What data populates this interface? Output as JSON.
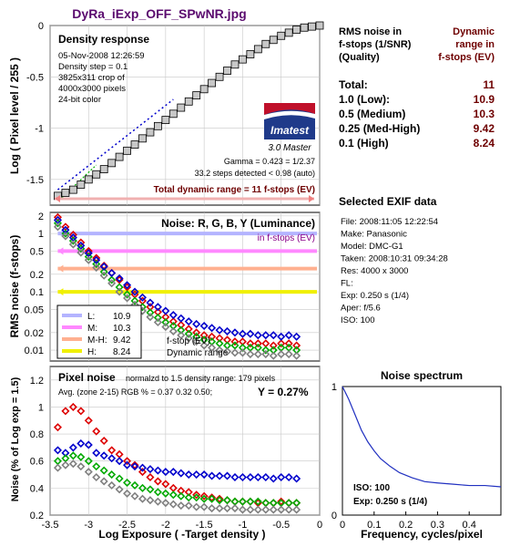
{
  "title": "DyRa_iExp_OFF_SPwNR.jpg",
  "colors": {
    "title": "#5a0a6e",
    "darkred": "#6e0000",
    "red": "#dd0000",
    "green": "#00aa00",
    "blue": "#0000cc",
    "gray": "#808080",
    "purple": "#880088"
  },
  "panel1": {
    "heading": "Density response",
    "info": [
      "05-Nov-2008 12:26:59",
      "Density step = 0.1",
      "3825x311 crop of",
      "4000x3000 pixels",
      "24-bit color"
    ],
    "logo": "Imatest",
    "logo_sub": "3.0  Master",
    "gamma": "Gamma = 0.423 = 1/2.37",
    "steps": "33.2 steps detected < 0.98 (auto)",
    "total_dr": "Total dynamic range = 11 f-stops (EV)",
    "ylabel": "Log ( Pixel level / 255 )",
    "yticks": [
      "0",
      "-0.5",
      "-1",
      "-1.5"
    ]
  },
  "panel2": {
    "heading": "Noise: R, G, B, Y (Luminance)",
    "sub": "in f-stops (EV)",
    "ylabel": "RMS noise (f-stops)",
    "yticks": [
      "2",
      "1",
      "0.5",
      "0.2",
      "0.1",
      "0.05",
      "0.02",
      "0.01"
    ],
    "legend": [
      {
        "key": "L:",
        "val": "10.9",
        "color": "#b4b4ff"
      },
      {
        "key": "M:",
        "val": "10.3",
        "color": "#ff88ff"
      },
      {
        "key": "M-H:",
        "val": "9.42",
        "color": "#ffb090"
      },
      {
        "key": "H:",
        "val": "8.24",
        "color": "#f0f000"
      }
    ],
    "note1": "f-stop (EV)",
    "note2": "Dynamic range"
  },
  "panel3": {
    "heading": "Pixel noise",
    "norm": "normalzd to 1.5 density range: 179 pixels",
    "avg": "Avg. (zone 2-15) RGB % = 0.37  0.32  0.50;",
    "y": "Y = 0.27%",
    "ylabel": "Noise (% of Log exp = 1.5)",
    "xlabel": "Log Exposure ( -Target density )",
    "yticks": [
      "1.2",
      "1",
      "0.8",
      "0.6",
      "0.4",
      "0.2"
    ],
    "xticks": [
      "-3.5",
      "-3",
      "-2.5",
      "-2",
      "-1.5",
      "-1",
      "-0.5",
      "0"
    ]
  },
  "dr_table": {
    "head_left": [
      "RMS noise in",
      "f-stops (1/SNR)",
      "(Quality)"
    ],
    "head_right": [
      "Dynamic",
      "range in",
      "f-stops (EV)"
    ],
    "rows": [
      {
        "label": "Total:",
        "value": "11"
      },
      {
        "label": "1.0   (Low):",
        "value": "10.9"
      },
      {
        "label": "0.5   (Medium)",
        "value": "10.3"
      },
      {
        "label": "0.25 (Med-High)",
        "value": "9.42"
      },
      {
        "label": "0.1   (High)",
        "value": "8.24"
      }
    ]
  },
  "exif": {
    "heading": "Selected EXIF data",
    "lines": [
      "File:  2008:11:05 12:22:54",
      "Make:  Panasonic",
      "Model: DMC-G1",
      "Taken: 2008:10:31 09:34:28",
      "Res:    4000 x 3000",
      "FL:",
      "Exp:   0.250 s  (1/4)",
      "Aper:  f/5.6",
      "ISO:   100"
    ]
  },
  "spectrum": {
    "heading": "Noise spectrum",
    "iso": "ISO:  100",
    "exp": "Exp:  0.250 s  (1/4)",
    "xlabel": "Frequency, cycles/pixel",
    "xticks": [
      "0",
      "0.1",
      "0.2",
      "0.3",
      "0.4"
    ],
    "yticks": [
      "1",
      "0"
    ]
  },
  "chart_data": [
    {
      "type": "line",
      "title": "Density response",
      "xlabel": "Log Exposure ( -Target density )",
      "ylabel": "Log ( Pixel level / 255 )",
      "xlim": [
        -3.5,
        0
      ],
      "ylim": [
        -1.75,
        0
      ],
      "x": [
        -3.4,
        -3.3,
        -3.2,
        -3.1,
        -3.0,
        -2.9,
        -2.8,
        -2.7,
        -2.6,
        -2.5,
        -2.4,
        -2.3,
        -2.2,
        -2.1,
        -2.0,
        -1.9,
        -1.8,
        -1.7,
        -1.6,
        -1.5,
        -1.4,
        -1.3,
        -1.2,
        -1.1,
        -1.0,
        -0.9,
        -0.8,
        -0.7,
        -0.6,
        -0.5,
        -0.4,
        -0.3,
        -0.2,
        -0.1,
        0.0
      ],
      "y": [
        -1.66,
        -1.63,
        -1.6,
        -1.55,
        -1.5,
        -1.45,
        -1.4,
        -1.34,
        -1.28,
        -1.22,
        -1.16,
        -1.1,
        -1.04,
        -0.98,
        -0.92,
        -0.86,
        -0.8,
        -0.74,
        -0.68,
        -0.62,
        -0.56,
        -0.5,
        -0.44,
        -0.38,
        -0.33,
        -0.28,
        -0.23,
        -0.18,
        -0.14,
        -0.1,
        -0.07,
        -0.04,
        -0.02,
        -0.01,
        0.0
      ]
    },
    {
      "type": "scatter",
      "title": "Noise: R, G, B, Y (Luminance)",
      "ylabel": "RMS noise (f-stops)",
      "yscale": "log",
      "ylim": [
        0.006,
        2.5
      ],
      "x": [
        -3.4,
        -3.3,
        -3.2,
        -3.1,
        -3.0,
        -2.9,
        -2.8,
        -2.7,
        -2.6,
        -2.5,
        -2.4,
        -2.3,
        -2.2,
        -2.1,
        -2.0,
        -1.9,
        -1.8,
        -1.7,
        -1.6,
        -1.5,
        -1.4,
        -1.3,
        -1.2,
        -1.1,
        -1.0,
        -0.9,
        -0.8,
        -0.7,
        -0.6,
        -0.5,
        -0.4,
        -0.3
      ],
      "series": [
        {
          "color": "#dd0000",
          "values": [
            1.9,
            1.3,
            0.95,
            0.7,
            0.5,
            0.38,
            0.28,
            0.21,
            0.16,
            0.12,
            0.09,
            0.07,
            0.055,
            0.045,
            0.037,
            0.031,
            0.027,
            0.023,
            0.02,
            0.018,
            0.017,
            0.016,
            0.015,
            0.014,
            0.014,
            0.013,
            0.013,
            0.013,
            0.012,
            0.013,
            0.013,
            0.012
          ]
        },
        {
          "color": "#00aa00",
          "values": [
            1.5,
            1.0,
            0.75,
            0.55,
            0.4,
            0.3,
            0.22,
            0.16,
            0.12,
            0.09,
            0.07,
            0.055,
            0.044,
            0.036,
            0.03,
            0.026,
            0.022,
            0.019,
            0.017,
            0.015,
            0.014,
            0.013,
            0.012,
            0.012,
            0.011,
            0.011,
            0.011,
            0.01,
            0.01,
            0.011,
            0.011,
            0.01
          ]
        },
        {
          "color": "#0000cc",
          "values": [
            1.7,
            1.15,
            0.85,
            0.62,
            0.46,
            0.35,
            0.27,
            0.21,
            0.17,
            0.13,
            0.1,
            0.08,
            0.065,
            0.055,
            0.047,
            0.04,
            0.035,
            0.031,
            0.028,
            0.026,
            0.024,
            0.022,
            0.021,
            0.02,
            0.019,
            0.019,
            0.018,
            0.018,
            0.018,
            0.017,
            0.018,
            0.017
          ]
        },
        {
          "color": "#808080",
          "values": [
            1.3,
            0.9,
            0.65,
            0.47,
            0.35,
            0.26,
            0.19,
            0.14,
            0.1,
            0.078,
            0.06,
            0.047,
            0.037,
            0.03,
            0.025,
            0.021,
            0.018,
            0.016,
            0.014,
            0.012,
            0.011,
            0.01,
            0.0095,
            0.009,
            0.009,
            0.0085,
            0.0085,
            0.0085,
            0.008,
            0.0085,
            0.0085,
            0.008
          ]
        }
      ]
    },
    {
      "type": "scatter",
      "title": "Pixel noise",
      "xlabel": "Log Exposure ( -Target density )",
      "ylabel": "Noise (% of Log exp = 1.5)",
      "xlim": [
        -3.5,
        0
      ],
      "ylim": [
        0.2,
        1.3
      ],
      "x": [
        -3.4,
        -3.3,
        -3.2,
        -3.1,
        -3.0,
        -2.9,
        -2.8,
        -2.7,
        -2.6,
        -2.5,
        -2.4,
        -2.3,
        -2.2,
        -2.1,
        -2.0,
        -1.9,
        -1.8,
        -1.7,
        -1.6,
        -1.5,
        -1.4,
        -1.3,
        -1.2,
        -1.1,
        -1.0,
        -0.9,
        -0.8,
        -0.7,
        -0.6,
        -0.5,
        -0.4,
        -0.3
      ],
      "series": [
        {
          "color": "#dd0000",
          "values": [
            0.85,
            0.97,
            1.0,
            0.97,
            0.9,
            0.82,
            0.75,
            0.68,
            0.65,
            0.6,
            0.57,
            0.52,
            0.48,
            0.45,
            0.43,
            0.4,
            0.38,
            0.37,
            0.35,
            0.34,
            0.33,
            0.32,
            0.31,
            0.3,
            0.3,
            0.3,
            0.29,
            0.29,
            0.29,
            0.3,
            0.29,
            0.29
          ]
        },
        {
          "color": "#0000cc",
          "values": [
            0.68,
            0.66,
            0.7,
            0.73,
            0.72,
            0.66,
            0.64,
            0.62,
            0.6,
            0.57,
            0.56,
            0.55,
            0.54,
            0.53,
            0.52,
            0.52,
            0.51,
            0.5,
            0.5,
            0.5,
            0.49,
            0.49,
            0.49,
            0.48,
            0.48,
            0.48,
            0.48,
            0.48,
            0.47,
            0.48,
            0.48,
            0.47
          ]
        },
        {
          "color": "#00aa00",
          "values": [
            0.6,
            0.62,
            0.64,
            0.63,
            0.6,
            0.56,
            0.53,
            0.5,
            0.47,
            0.44,
            0.42,
            0.4,
            0.39,
            0.37,
            0.36,
            0.35,
            0.34,
            0.33,
            0.33,
            0.32,
            0.32,
            0.31,
            0.31,
            0.3,
            0.3,
            0.3,
            0.3,
            0.29,
            0.29,
            0.29,
            0.29,
            0.29
          ]
        },
        {
          "color": "#808080",
          "values": [
            0.55,
            0.57,
            0.58,
            0.56,
            0.52,
            0.48,
            0.45,
            0.42,
            0.39,
            0.36,
            0.34,
            0.32,
            0.31,
            0.3,
            0.29,
            0.28,
            0.27,
            0.27,
            0.26,
            0.26,
            0.25,
            0.25,
            0.25,
            0.25,
            0.24,
            0.24,
            0.24,
            0.24,
            0.24,
            0.24,
            0.24,
            0.24
          ]
        }
      ]
    },
    {
      "type": "line",
      "title": "Noise spectrum",
      "xlabel": "Frequency, cycles/pixel",
      "xlim": [
        0,
        0.5
      ],
      "ylim": [
        0,
        1
      ],
      "x": [
        0,
        0.02,
        0.04,
        0.06,
        0.08,
        0.1,
        0.12,
        0.15,
        0.18,
        0.22,
        0.26,
        0.3,
        0.35,
        0.4,
        0.45,
        0.5
      ],
      "y": [
        1.0,
        0.9,
        0.78,
        0.66,
        0.57,
        0.5,
        0.44,
        0.38,
        0.33,
        0.29,
        0.26,
        0.25,
        0.24,
        0.23,
        0.23,
        0.22
      ]
    }
  ]
}
